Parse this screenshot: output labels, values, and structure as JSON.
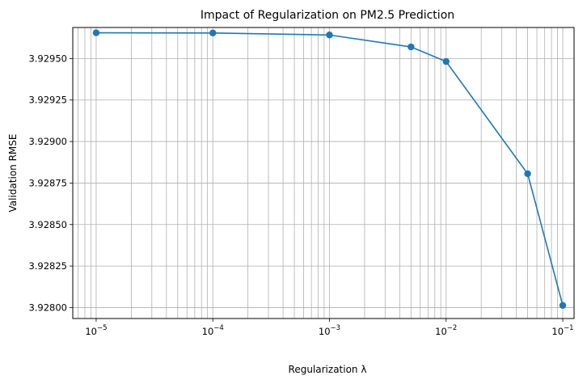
{
  "chart_data": {
    "type": "line",
    "title": "Impact of Regularization on PM2.5 Prediction",
    "xlabel": "Regularization λ",
    "ylabel": "Validation RMSE",
    "xscale": "log",
    "grid": "both (major and minor)",
    "x_ticks": [
      {
        "value": 1e-05,
        "base": "10",
        "exp": "−5"
      },
      {
        "value": 0.0001,
        "base": "10",
        "exp": "−4"
      },
      {
        "value": 0.001,
        "base": "10",
        "exp": "−3"
      },
      {
        "value": 0.01,
        "base": "10",
        "exp": "−2"
      },
      {
        "value": 0.1,
        "base": "10",
        "exp": "−1"
      }
    ],
    "y_ticks": [
      "3.92800",
      "3.92825",
      "3.92850",
      "3.92875",
      "3.92900",
      "3.92925",
      "3.92950"
    ],
    "xlim": [
      6.3e-06,
      0.125
    ],
    "ylim": [
      3.927934,
      3.929687
    ],
    "series": [
      {
        "color": "#1f77b4",
        "marker": "circle",
        "x": [
          1e-05,
          0.0001,
          0.001,
          0.005,
          0.01,
          0.05,
          0.1
        ],
        "y": [
          3.929655,
          3.929654,
          3.929642,
          3.92957,
          3.929482,
          3.928806,
          3.928013
        ]
      }
    ]
  }
}
